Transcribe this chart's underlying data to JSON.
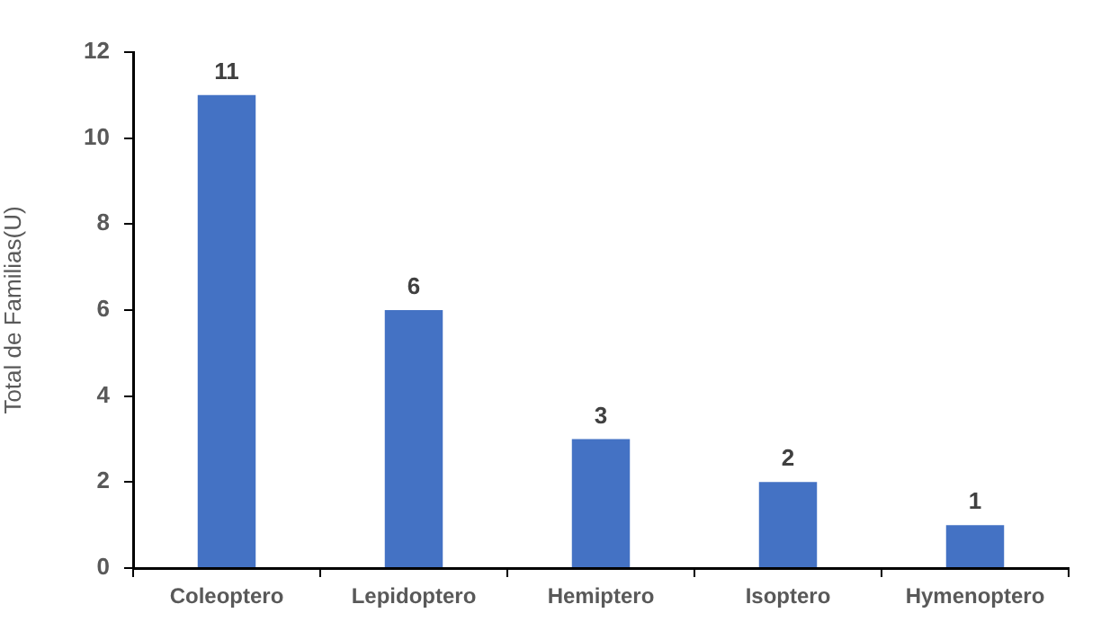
{
  "chart_data": {
    "type": "bar",
    "ylabel": "Total de Familias(U)",
    "categories": [
      "Coleoptero",
      "Lepidoptero",
      "Hemiptero",
      "Isoptero",
      "Hymenoptero"
    ],
    "values": [
      11,
      6,
      3,
      2,
      1
    ],
    "color": "#4472c4",
    "ylim": [
      0,
      12
    ],
    "yticks": [
      0,
      2,
      4,
      6,
      8,
      10,
      12
    ],
    "grid": false,
    "legend": false,
    "data_labels": true
  }
}
